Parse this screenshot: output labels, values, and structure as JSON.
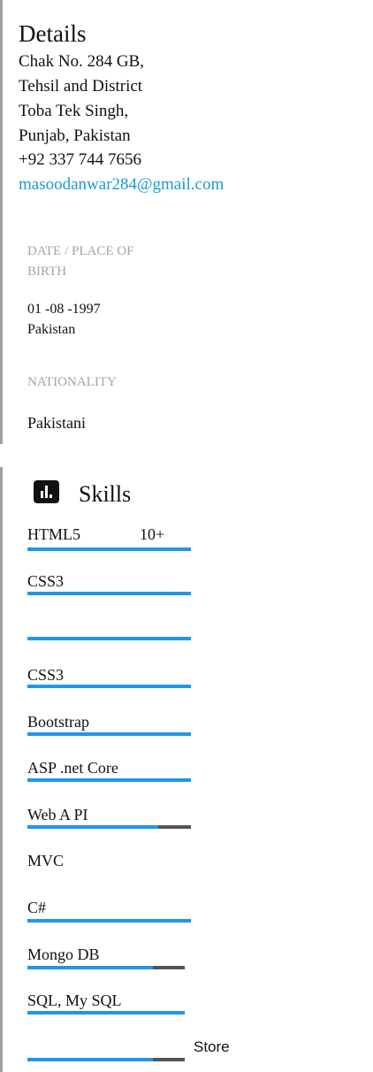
{
  "details": {
    "title": "Details",
    "address_lines": [
      "Chak No. 284 GB,",
      "Tehsil and District",
      "Toba Tek Singh,",
      "Punjab, Pakistan"
    ],
    "phone": "+92 337 744 7656",
    "email": "masoodanwar284@gmail.com",
    "accent_color": "#1a9bd8"
  },
  "birth": {
    "label_line1": "DATE / PLACE OF",
    "label_line2": "BIRTH",
    "date": "01 -08 -1997",
    "place": "Pakistan"
  },
  "nationality": {
    "label": "NATIONALITY",
    "value": "Pakistani"
  },
  "skills": {
    "icon": "bar-chart-icon",
    "title": "Skills",
    "bar_color": "#2196e8",
    "track_color": "#555555",
    "items": [
      {
        "label": "HTML5",
        "level_text": "10+",
        "level": 1.0
      },
      {
        "label": "CSS3",
        "level": 1.0
      },
      {
        "label": "",
        "level": 1.0
      },
      {
        "label": "CSS3",
        "level": 1.0
      },
      {
        "label": "Bootstrap",
        "level": 1.0
      },
      {
        "label": "ASP .net    Core",
        "level": 1.0
      },
      {
        "label": "Web A  PI",
        "level": 0.8
      },
      {
        "label": "MVC"
      },
      {
        "label": "C#",
        "level": 1.0
      },
      {
        "label": "Mongo DB",
        "level": 0.8
      },
      {
        "label": "SQL, My SQL",
        "level": 1.0
      },
      {
        "label": "",
        "level": 0.8
      }
    ],
    "trailing_text": "Store"
  }
}
